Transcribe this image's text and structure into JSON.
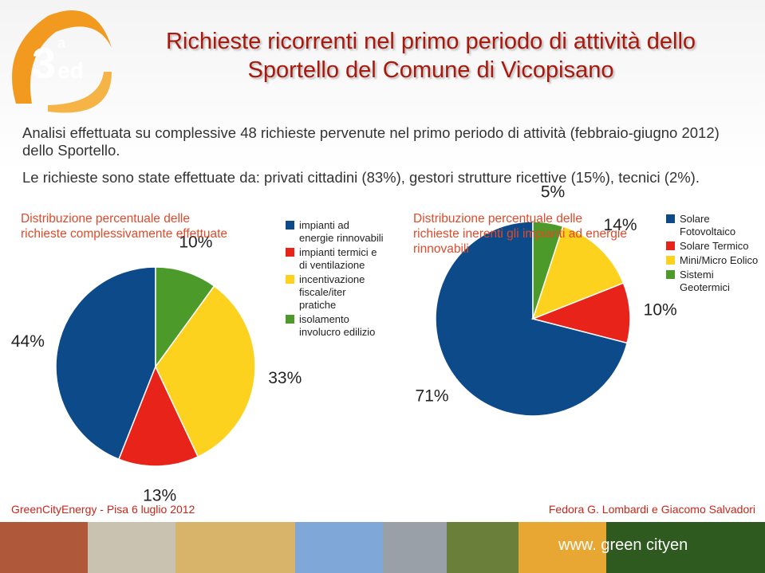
{
  "slide": {
    "logo": {
      "number": "3",
      "superscript": "a",
      "suffix": "ed"
    },
    "title": [
      "Richieste ricorrenti nel primo periodo di attività dello",
      "Sportello del Comune di Vicopisano"
    ],
    "paragraphs": [
      "Analisi effettuata su complessive 48 richieste pervenute nel primo periodo di attività (febbraio-giugno 2012) dello Sportello.",
      "Le richieste sono state effettuate da: privati cittadini (83%), gestori strutture ricettive (15%), tecnici (2%)."
    ],
    "footer_left": "GreenCityEnergy - Pisa 6 luglio 2012",
    "footer_right": "Fedora G. Lombardi e Giacomo Salvadori",
    "banner": "www. green cityen"
  },
  "chart_data": [
    {
      "type": "pie",
      "title": "Distribuzione percentuale delle richieste complessivamente effettuate",
      "categories": [
        "impianti ad energie rinnovabili",
        "impianti termici e di ventilazione",
        "incentivazione fiscale/iter pratiche",
        "isolamento involucro edilizio"
      ],
      "values": [
        44,
        13,
        33,
        10
      ],
      "value_labels": [
        "44%",
        "13%",
        "33%",
        "10%"
      ],
      "colors": [
        "#0d4a8a",
        "#e8231a",
        "#fcd21e",
        "#4c9a2a"
      ]
    },
    {
      "type": "pie",
      "title": "Distribuzione percentuale delle richieste inerenti gli impianti ad energie rinnovabili",
      "categories": [
        "Solare Fotovoltaico",
        "Solare Termico",
        "Mini/Micro Eolico",
        "Sistemi Geotermici"
      ],
      "values": [
        71,
        10,
        14,
        5
      ],
      "value_labels": [
        "71%",
        "10%",
        "14%",
        "5%"
      ],
      "colors": [
        "#0d4a8a",
        "#e8231a",
        "#fcd21e",
        "#4c9a2a"
      ]
    }
  ]
}
